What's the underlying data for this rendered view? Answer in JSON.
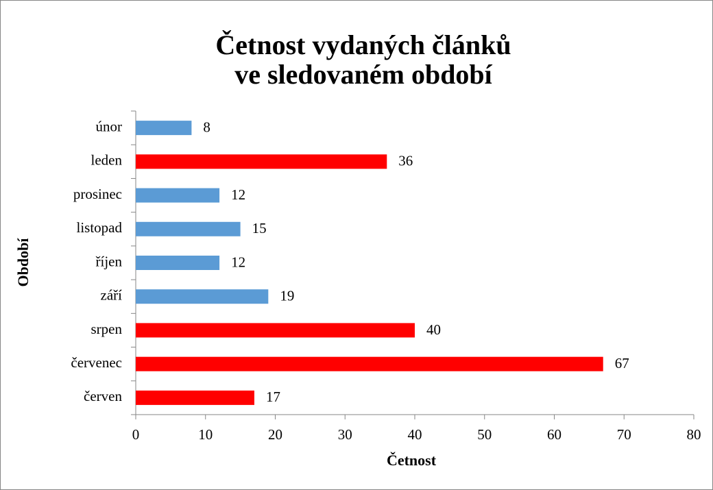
{
  "chart_data": {
    "type": "bar",
    "orientation": "horizontal",
    "title": [
      "Četnost vydaných článků",
      "ve sledovaném období"
    ],
    "x_label": "Četnost",
    "y_label": "Období",
    "categories": [
      "červen",
      "červenec",
      "srpen",
      "září",
      "říjen",
      "listopad",
      "prosinec",
      "leden",
      "únor"
    ],
    "values": [
      17,
      67,
      40,
      19,
      12,
      15,
      12,
      36,
      8
    ],
    "colors": [
      "#ff0000",
      "#ff0000",
      "#ff0000",
      "#5b9bd5",
      "#5b9bd5",
      "#5b9bd5",
      "#5b9bd5",
      "#ff0000",
      "#5b9bd5"
    ],
    "xlim": [
      0,
      80
    ],
    "xticks": [
      0,
      10,
      20,
      30,
      40,
      50,
      60,
      70,
      80
    ],
    "grid": false
  }
}
